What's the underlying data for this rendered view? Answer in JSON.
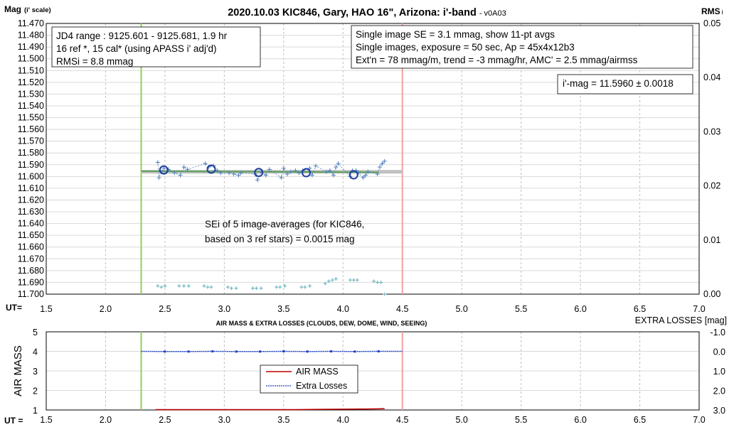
{
  "chart_data": [
    {
      "type": "scatter",
      "title": "2020.10.03 KIC846, Gary, HAO 16\", Arizona: i'-band",
      "title_suffix": "- v0A03",
      "ylabel": "Mag",
      "ylabel_sub": "(i' scale)",
      "y2label": "RMS",
      "y2label_sub": "i",
      "xaxis_prefix": "UT=",
      "xlim": [
        1.5,
        7.0
      ],
      "ylim": [
        11.47,
        11.7
      ],
      "y_inverted": true,
      "y2lim": [
        0.0,
        0.05
      ],
      "x_ticks": [
        "1.5",
        "2.0",
        "2.5",
        "3.0",
        "3.5",
        "4.0",
        "4.5",
        "5.0",
        "5.5",
        "6.0",
        "6.5",
        "7.0"
      ],
      "y_ticks": [
        "11.470",
        "11.480",
        "11.490",
        "11.500",
        "11.510",
        "11.520",
        "11.530",
        "11.540",
        "11.550",
        "11.560",
        "11.570",
        "11.580",
        "11.590",
        "11.600",
        "11.610",
        "11.620",
        "11.630",
        "11.640",
        "11.650",
        "11.660",
        "11.670",
        "11.680",
        "11.690",
        "11.700"
      ],
      "y2_ticks": [
        "0.05",
        "0.04",
        "0.03",
        "0.02",
        "0.01",
        "0.00"
      ],
      "grid": true,
      "annotations": {
        "box_left": [
          "JD4 range : 9125.601 - 9125.681, 1.9  hr",
          "16 ref *, 15 cal* (using APASS i' adj'd)",
          "RMSi = 8.8 mmag"
        ],
        "box_right": [
          "Single image SE = 3.1 mmag, show 11-pt avgs",
          "Single images, exposure = 50 sec, Ap = 45x4x12b3",
          "Ext'n = 78 mmag/m, trend = -3 mmag/hr, AMC' = 2.5 mmag/airmss"
        ],
        "box_mag": "i'-mag = 11.5960 ± 0.0018",
        "box_sei": [
          "SEi of 5 image-averages (for KIC846,",
          "based on 3 ref stars) = 0.0015 mag"
        ]
      },
      "vertical_lines": [
        {
          "x": 2.3,
          "color": "#92d050"
        },
        {
          "x": 4.5,
          "color": "#f4a0a0"
        }
      ],
      "fit_line": {
        "x": [
          2.3,
          4.5
        ],
        "y": [
          11.596,
          11.596
        ],
        "color": "#c0c0c0"
      },
      "trend_line": {
        "x": [
          2.3,
          4.3
        ],
        "y": [
          11.5955,
          11.5965
        ],
        "color": "#5aa05a"
      },
      "series": [
        {
          "marker": "plus",
          "color": "#4f81bd",
          "points": [
            [
              2.44,
              11.588
            ],
            [
              2.45,
              11.601
            ],
            [
              2.47,
              11.596
            ],
            [
              2.49,
              11.593
            ],
            [
              2.53,
              11.594
            ],
            [
              2.58,
              11.597
            ],
            [
              2.63,
              11.599
            ],
            [
              2.66,
              11.592
            ],
            [
              2.69,
              11.594
            ],
            [
              2.84,
              11.589
            ],
            [
              2.87,
              11.592
            ],
            [
              2.91,
              11.591
            ],
            [
              2.94,
              11.595
            ],
            [
              2.97,
              11.597
            ],
            [
              3.04,
              11.597
            ],
            [
              3.08,
              11.598
            ],
            [
              3.12,
              11.599
            ],
            [
              3.14,
              11.597
            ],
            [
              3.26,
              11.598
            ],
            [
              3.28,
              11.603
            ],
            [
              3.31,
              11.596
            ],
            [
              3.35,
              11.599
            ],
            [
              3.38,
              11.594
            ],
            [
              3.48,
              11.601
            ],
            [
              3.5,
              11.593
            ],
            [
              3.53,
              11.598
            ],
            [
              3.56,
              11.596
            ],
            [
              3.6,
              11.595
            ],
            [
              3.63,
              11.597
            ],
            [
              3.66,
              11.595
            ],
            [
              3.72,
              11.593
            ],
            [
              3.74,
              11.599
            ],
            [
              3.77,
              11.591
            ],
            [
              3.86,
              11.596
            ],
            [
              3.89,
              11.595
            ],
            [
              3.92,
              11.599
            ],
            [
              3.94,
              11.592
            ],
            [
              3.96,
              11.589
            ],
            [
              4.06,
              11.6
            ],
            [
              4.08,
              11.595
            ],
            [
              4.11,
              11.595
            ],
            [
              4.13,
              11.597
            ],
            [
              4.17,
              11.601
            ],
            [
              4.19,
              11.599
            ],
            [
              4.21,
              11.596
            ],
            [
              4.29,
              11.598
            ],
            [
              4.31,
              11.592
            ],
            [
              4.33,
              11.589
            ],
            [
              4.35,
              11.587
            ]
          ]
        },
        {
          "marker": "circle",
          "color": "#1f3f9f",
          "points": [
            [
              2.49,
              11.5945
            ],
            [
              2.89,
              11.5938
            ],
            [
              3.29,
              11.5966
            ],
            [
              3.69,
              11.5968
            ],
            [
              4.09,
              11.5986
            ]
          ]
        },
        {
          "marker": "plus",
          "color": "#5fb0b8",
          "points": [
            [
              2.44,
              11.693
            ],
            [
              2.47,
              11.694
            ],
            [
              2.5,
              11.693
            ],
            [
              2.62,
              11.693
            ],
            [
              2.66,
              11.693
            ],
            [
              2.7,
              11.693
            ],
            [
              2.83,
              11.693
            ],
            [
              2.86,
              11.694
            ],
            [
              2.89,
              11.694
            ],
            [
              3.03,
              11.694
            ],
            [
              3.06,
              11.695
            ],
            [
              3.1,
              11.695
            ],
            [
              3.24,
              11.695
            ],
            [
              3.27,
              11.695
            ],
            [
              3.31,
              11.695
            ],
            [
              3.44,
              11.694
            ],
            [
              3.47,
              11.694
            ],
            [
              3.51,
              11.693
            ],
            [
              3.65,
              11.694
            ],
            [
              3.68,
              11.694
            ],
            [
              3.72,
              11.693
            ],
            [
              3.85,
              11.691
            ],
            [
              3.88,
              11.689
            ],
            [
              3.91,
              11.688
            ],
            [
              3.94,
              11.687
            ],
            [
              4.06,
              11.688
            ],
            [
              4.09,
              11.688
            ],
            [
              4.12,
              11.688
            ],
            [
              4.26,
              11.689
            ],
            [
              4.29,
              11.69
            ],
            [
              4.32,
              11.69
            ],
            [
              4.35,
              11.7
            ]
          ]
        }
      ]
    },
    {
      "type": "line",
      "title": "AIR MASS & EXTRA LOSSES (CLOUDS, DEW, DOME, WIND, SEEING)",
      "ylabel": "AIR MASS",
      "y2label": "EXTRA LOSSES [mag]",
      "xaxis_prefix": "UT =",
      "xlim": [
        1.5,
        7.0
      ],
      "ylim": [
        1,
        5
      ],
      "y2lim": [
        -1.0,
        3.0
      ],
      "y2_inverted": true,
      "x_ticks": [
        "1.5",
        "2.0",
        "2.5",
        "3.0",
        "3.5",
        "4.0",
        "4.5",
        "5.0",
        "5.5",
        "6.0",
        "6.5",
        "7.0"
      ],
      "y_ticks": [
        "5",
        "4",
        "3",
        "2",
        "1"
      ],
      "y2_ticks": [
        "-1.0",
        "0.0",
        "1.0",
        "2.0",
        "3.0"
      ],
      "legend": [
        "AIR MASS",
        "Extra Losses"
      ],
      "legend_position": "center",
      "vertical_lines": [
        {
          "x": 2.3,
          "color": "#92d050"
        },
        {
          "x": 4.5,
          "color": "#f4a0a0"
        }
      ],
      "series": [
        {
          "name": "AIR MASS",
          "color": "#c00000",
          "x": [
            2.42,
            2.7,
            3.0,
            3.3,
            3.6,
            3.8,
            4.0,
            4.2,
            4.3,
            4.35
          ],
          "y": [
            1.02,
            1.02,
            1.02,
            1.02,
            1.02,
            1.03,
            1.04,
            1.05,
            1.06,
            1.07
          ]
        },
        {
          "name": "Extra Losses",
          "color": "#1f3fbf",
          "x": [
            2.3,
            2.5,
            2.7,
            2.9,
            3.1,
            3.3,
            3.5,
            3.7,
            3.9,
            4.1,
            4.3,
            4.5
          ],
          "y": [
            0.0,
            0.01,
            0.01,
            0.0,
            0.01,
            0.01,
            0.0,
            0.01,
            0.0,
            0.01,
            0.0,
            0.0
          ]
        }
      ]
    }
  ]
}
